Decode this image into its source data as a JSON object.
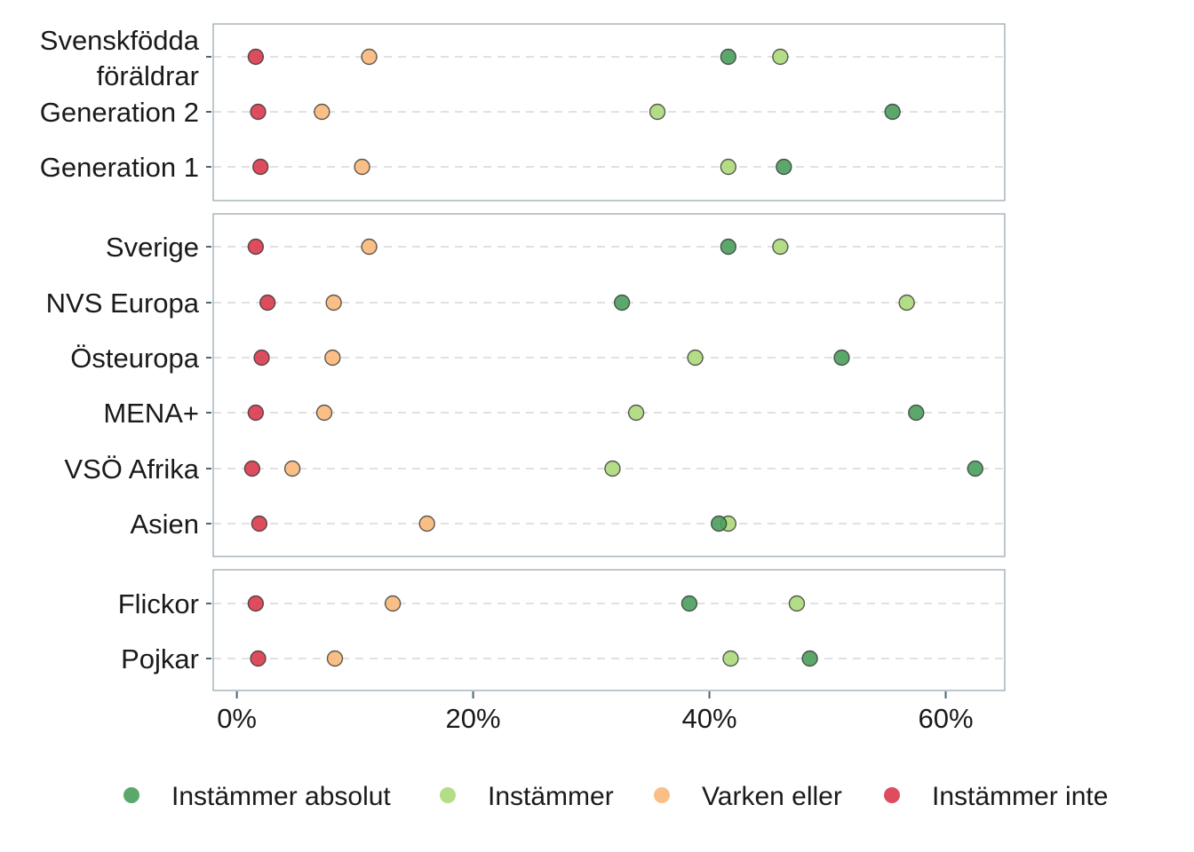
{
  "chart_data": {
    "type": "scatter",
    "xlim": [
      -0.02,
      0.65
    ],
    "x_ticks": [
      0,
      0.2,
      0.4,
      0.6
    ],
    "x_tick_labels": [
      "0%",
      "20%",
      "40%",
      "60%"
    ],
    "grid": "horizontal dashed",
    "legend_position": "bottom",
    "series": [
      {
        "name": "Instämmer absolut",
        "color": "#4a9e5c"
      },
      {
        "name": "Instämmer",
        "color": "#acd97a"
      },
      {
        "name": "Varken eller",
        "color": "#f8b87a"
      },
      {
        "name": "Instämmer inte",
        "color": "#d93a4c"
      }
    ],
    "panels": [
      {
        "rows": [
          {
            "label": [
              "Svenskfödda",
              "föräldrar"
            ],
            "values": [
              0.416,
              0.46,
              0.112,
              0.016
            ]
          },
          {
            "label": [
              "Generation 2"
            ],
            "values": [
              0.555,
              0.356,
              0.072,
              0.018
            ]
          },
          {
            "label": [
              "Generation 1"
            ],
            "values": [
              0.463,
              0.416,
              0.106,
              0.02
            ]
          }
        ]
      },
      {
        "rows": [
          {
            "label": [
              "Sverige"
            ],
            "values": [
              0.416,
              0.46,
              0.112,
              0.016
            ]
          },
          {
            "label": [
              "NVS Europa"
            ],
            "values": [
              0.326,
              0.567,
              0.082,
              0.026
            ]
          },
          {
            "label": [
              "Östeuropa"
            ],
            "values": [
              0.512,
              0.388,
              0.081,
              0.021
            ]
          },
          {
            "label": [
              "MENA+"
            ],
            "values": [
              0.575,
              0.338,
              0.074,
              0.016
            ]
          },
          {
            "label": [
              "VSÖ Afrika"
            ],
            "values": [
              0.625,
              0.318,
              0.047,
              0.013
            ]
          },
          {
            "label": [
              "Asien"
            ],
            "values": [
              0.408,
              0.416,
              0.161,
              0.019
            ]
          }
        ]
      },
      {
        "rows": [
          {
            "label": [
              "Flickor"
            ],
            "values": [
              0.383,
              0.474,
              0.132,
              0.016
            ]
          },
          {
            "label": [
              "Pojkar"
            ],
            "values": [
              0.485,
              0.418,
              0.083,
              0.018
            ]
          }
        ]
      }
    ]
  }
}
